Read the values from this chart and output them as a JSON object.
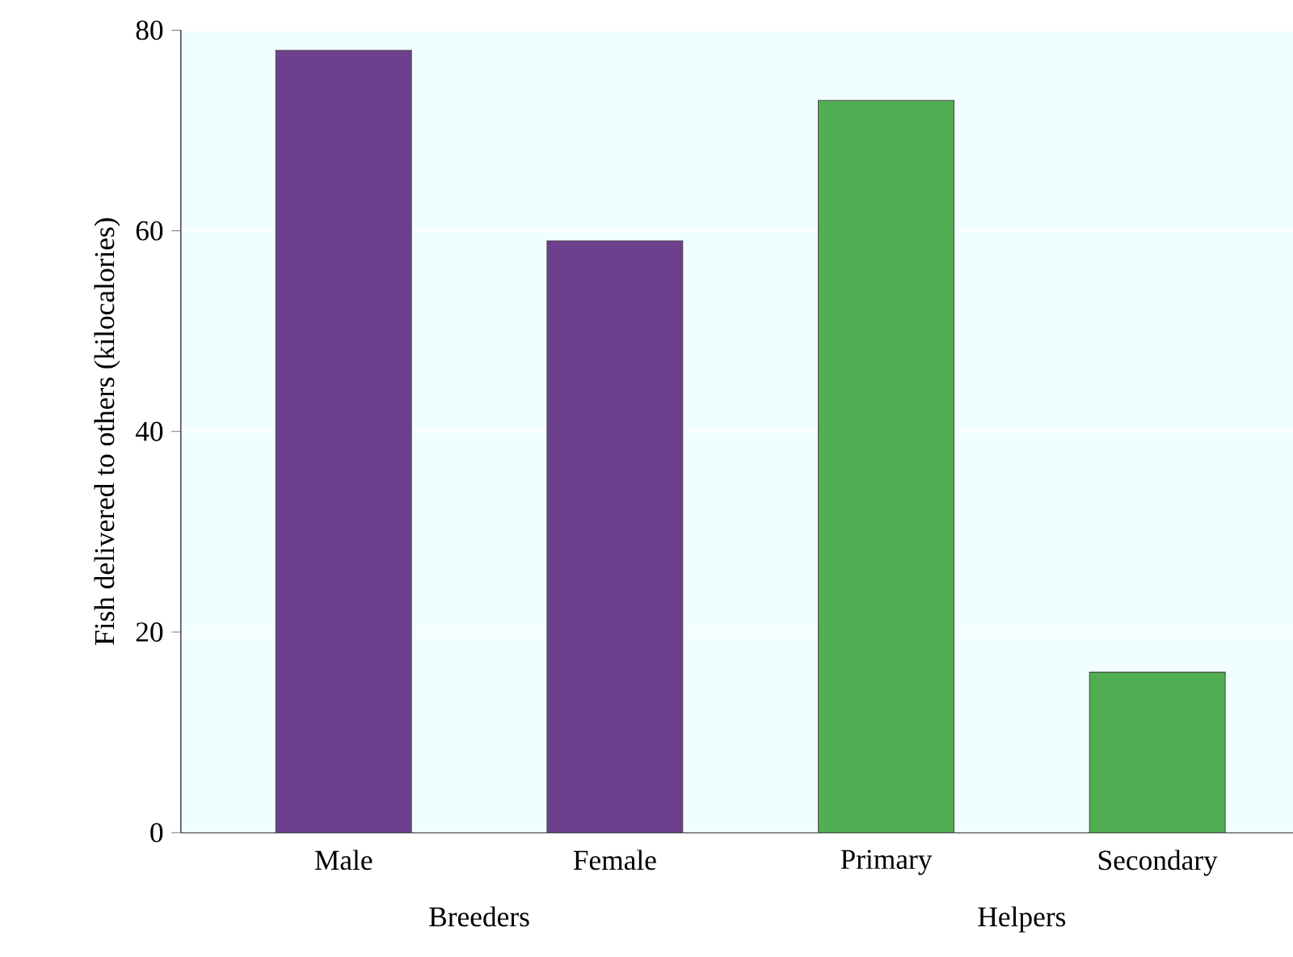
{
  "chart_data": {
    "type": "bar",
    "ylabel": "Fish delivered to others (kilocalories)",
    "categories": [
      "Male",
      "Female",
      "Primary",
      "Secondary"
    ],
    "values": [
      78,
      59,
      73,
      16
    ],
    "colors": [
      "#6e3f8c",
      "#6e3f8c",
      "#52ae52",
      "#52ae52"
    ],
    "ylim": [
      0,
      80
    ],
    "yticks": [
      0,
      20,
      40,
      60,
      80
    ],
    "grid": "y",
    "annotations": [
      "Breeders",
      "Helpers"
    ]
  }
}
